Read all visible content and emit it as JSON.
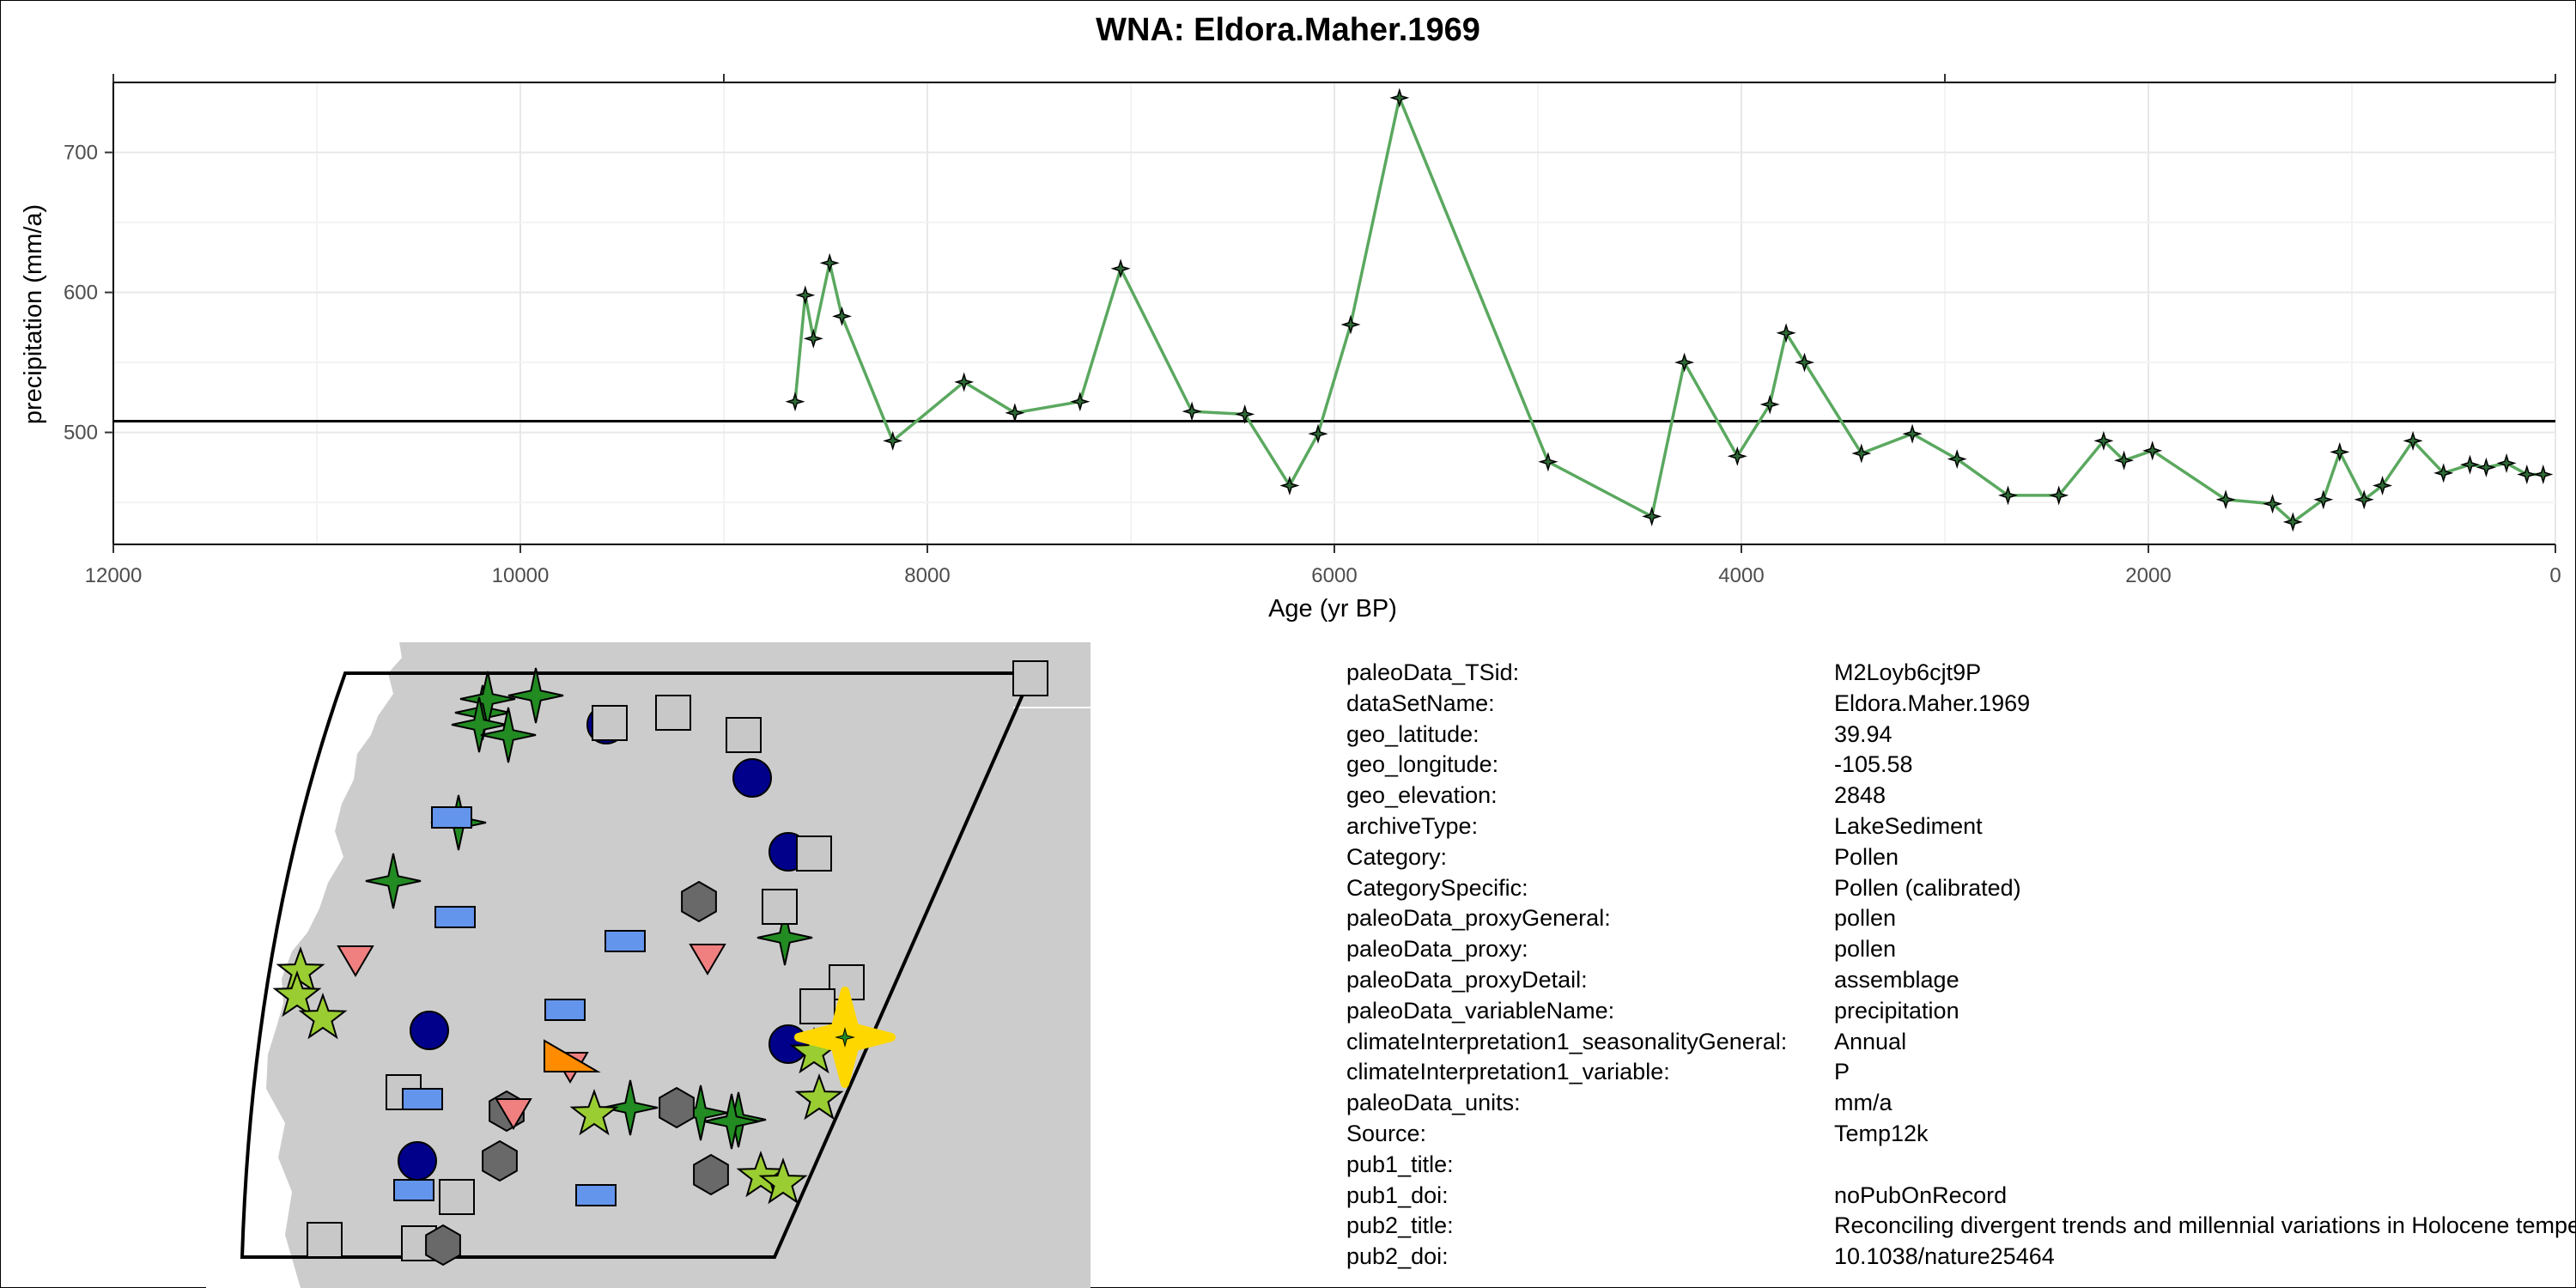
{
  "chart_data": {
    "type": "line",
    "title": "WNA: Eldora.Maher.1969",
    "xlabel": "Age (yr BP)",
    "ylabel": "precipitation (mm/a)",
    "xlim": [
      12000,
      0
    ],
    "ylim": [
      420,
      750
    ],
    "x_reversed": true,
    "x_ticks": [
      12000,
      10000,
      8000,
      6000,
      4000,
      2000,
      0
    ],
    "y_ticks": [
      500,
      600,
      700
    ],
    "grid": true,
    "reference_line": 508,
    "line_color": "#5aa85f",
    "marker_color": "#2f6b37",
    "series": [
      {
        "x": [
          8650,
          8600,
          8560,
          8480,
          8420,
          8170,
          7820,
          7570,
          7250,
          7050,
          6700,
          6440,
          6220,
          6080,
          5920,
          5680,
          4950,
          4440,
          4280,
          4020,
          3860,
          3780,
          3690,
          3410,
          3160,
          2940,
          2690,
          2440,
          2220,
          2120,
          1980,
          1620,
          1390,
          1290,
          1140,
          1060,
          940,
          850,
          700,
          550,
          420,
          340,
          240,
          140,
          60
        ],
        "y": [
          522,
          598,
          567,
          621,
          583,
          494,
          536,
          514,
          522,
          617,
          515,
          513,
          462,
          499,
          577,
          739,
          479,
          440,
          550,
          483,
          520,
          571,
          550,
          485,
          499,
          481,
          455,
          455,
          494,
          480,
          487,
          452,
          449,
          436,
          452,
          486,
          452,
          462,
          494,
          471,
          477,
          475,
          478,
          470,
          470
        ]
      }
    ]
  },
  "map": {
    "land_color": "#cccccc",
    "highlight_color": "#ffd700",
    "symbols": [
      {
        "shape": "star4",
        "color": "#228b22"
      },
      {
        "shape": "circle",
        "color": "#00008b"
      },
      {
        "shape": "square",
        "color": "#c8c8c8"
      },
      {
        "shape": "rect",
        "color": "#6495ed"
      },
      {
        "shape": "hexagon",
        "color": "#696969"
      },
      {
        "shape": "triangle-down",
        "color": "#f08080"
      },
      {
        "shape": "star5",
        "color": "#9acd32"
      },
      {
        "shape": "triangle",
        "color": "#ff8c00"
      }
    ]
  },
  "metadata": [
    {
      "key": "paleoData_TSid:",
      "value": "M2Loyb6cjt9P"
    },
    {
      "key": "dataSetName:",
      "value": "Eldora.Maher.1969"
    },
    {
      "key": "geo_latitude:",
      "value": "39.94"
    },
    {
      "key": "geo_longitude:",
      "value": "-105.58"
    },
    {
      "key": "geo_elevation:",
      "value": "2848"
    },
    {
      "key": "archiveType:",
      "value": "LakeSediment"
    },
    {
      "key": "Category:",
      "value": "Pollen"
    },
    {
      "key": "CategorySpecific:",
      "value": "Pollen (calibrated)"
    },
    {
      "key": "paleoData_proxyGeneral:",
      "value": "pollen"
    },
    {
      "key": "paleoData_proxy:",
      "value": "pollen"
    },
    {
      "key": "paleoData_proxyDetail:",
      "value": "assemblage"
    },
    {
      "key": "paleoData_variableName:",
      "value": "precipitation"
    },
    {
      "key": "climateInterpretation1_seasonalityGeneral:",
      "value": "Annual"
    },
    {
      "key": "climateInterpretation1_variable:",
      "value": "P"
    },
    {
      "key": "paleoData_units:",
      "value": "mm/a"
    },
    {
      "key": "Source:",
      "value": "Temp12k"
    },
    {
      "key": "pub1_title:",
      "value": ""
    },
    {
      "key": "pub1_doi:",
      "value": "noPubOnRecord"
    },
    {
      "key": "pub2_title:",
      "value": "Reconciling divergent trends and millennial variations in Holocene temperatures"
    },
    {
      "key": "pub2_doi:",
      "value": "10.1038/nature25464"
    }
  ]
}
